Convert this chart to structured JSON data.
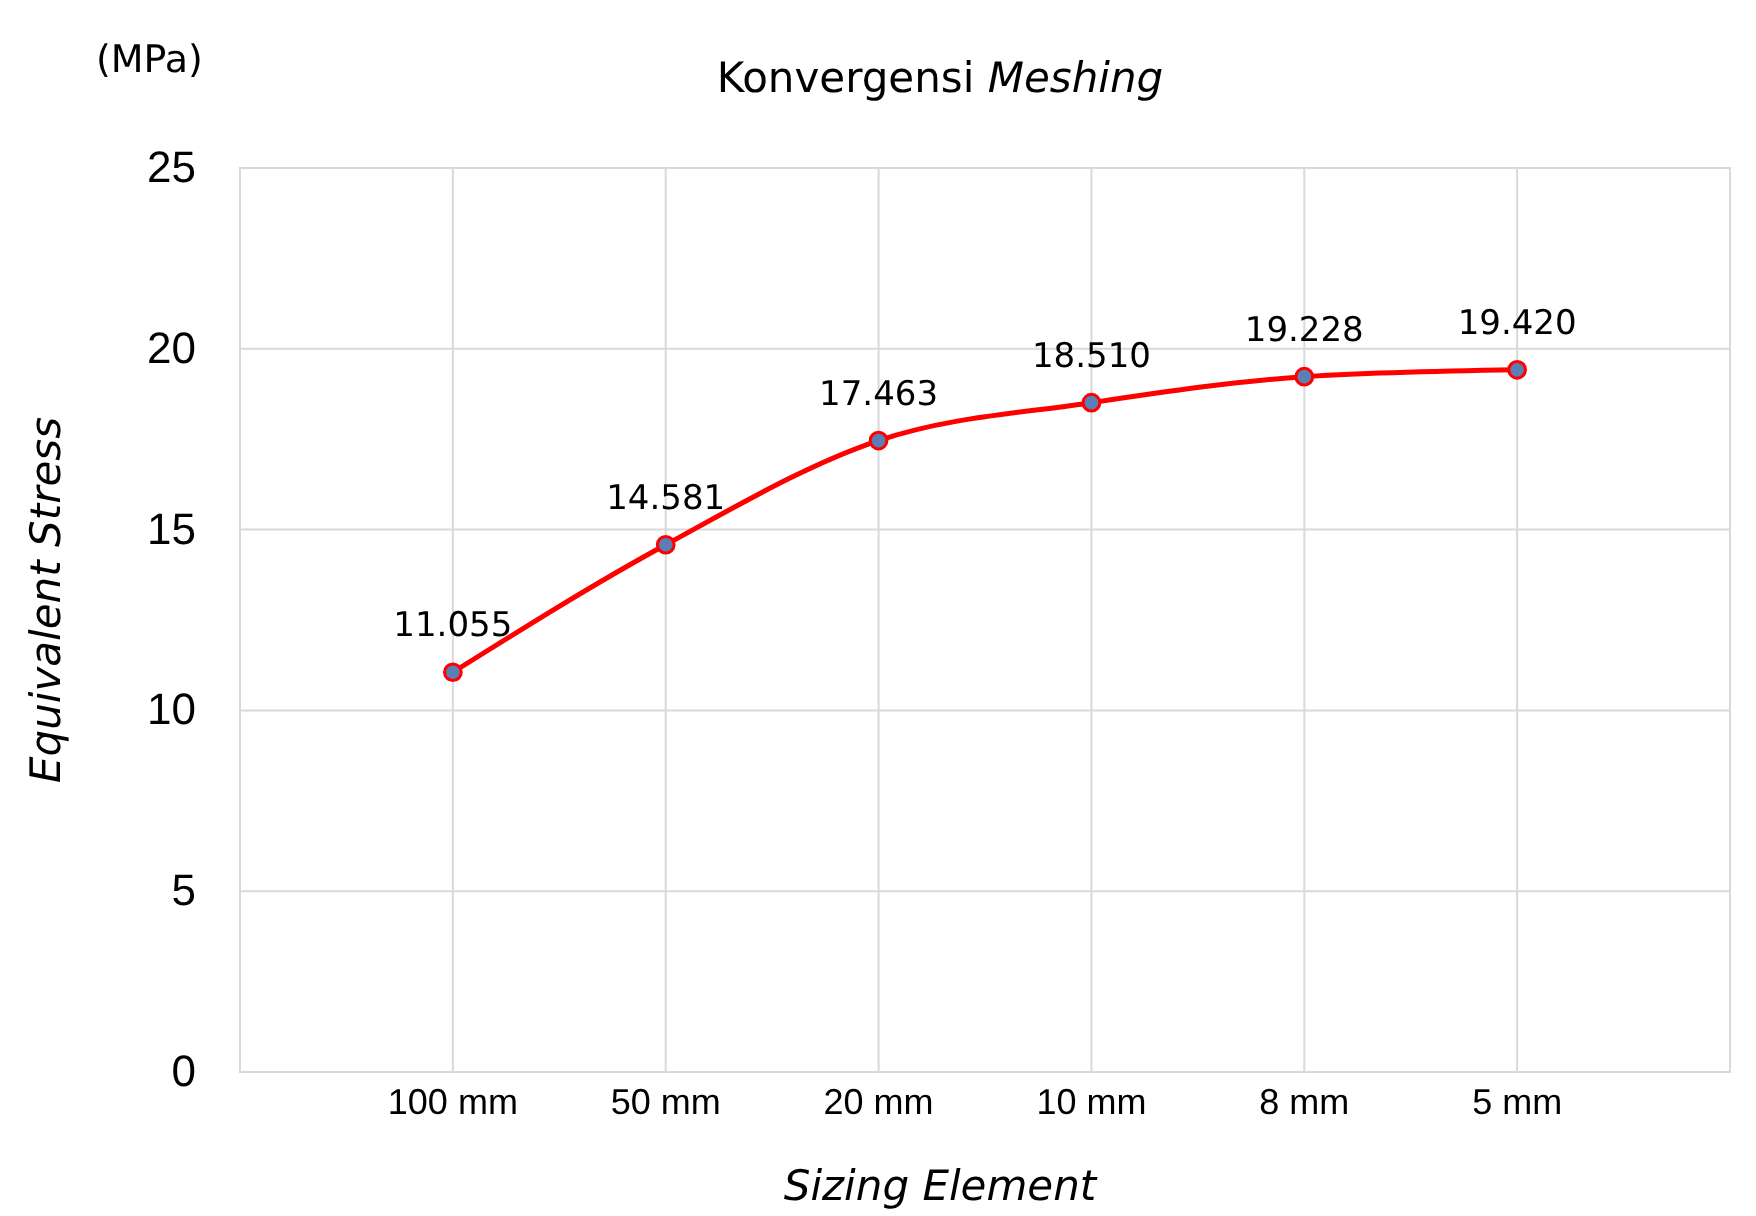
{
  "chart_data": {
    "type": "line",
    "title": "Konvergensi Meshing",
    "xlabel": "Sizing Element",
    "ylabel": "Equivalent Stress",
    "annotations": [
      "(MPa)"
    ],
    "categories": [
      "100 mm",
      "50 mm",
      "20 mm",
      "10 mm",
      "8 mm",
      "5 mm"
    ],
    "series": [
      {
        "color": "#ff0000",
        "values": [
          11.055,
          14.581,
          17.463,
          18.51,
          19.228,
          19.42
        ],
        "value_labels": [
          "11.055",
          "14.581",
          "17.463",
          "18.510",
          "19.228",
          "19.420"
        ]
      }
    ],
    "ylim": [
      0,
      25
    ],
    "yticks": [
      0,
      5,
      10,
      15,
      20,
      25
    ],
    "grid": true,
    "marker": "circle",
    "line_style": "solid"
  }
}
